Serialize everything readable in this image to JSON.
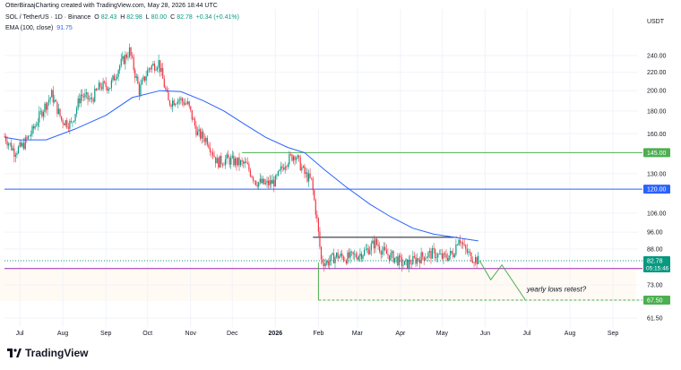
{
  "credit": "OtterBiraajCharting created with TradingView.com, May 28, 2026 18:44 UTC",
  "symbol": "SOL / TetherUS · 1D · Binance",
  "ohlc": {
    "O": "82.43",
    "H": "82.98",
    "L": "80.00",
    "C": "82.78",
    "change": "+0.34 (+0.41%)"
  },
  "ema": {
    "label": "EMA (100, close)",
    "value": "91.75"
  },
  "currency": "USDT",
  "logo_text": "TradingView",
  "colors": {
    "up": "#089981",
    "down": "#f23645",
    "ema": "#2962ff",
    "green_line": "#4caf50",
    "blue_line": "#2962ff",
    "purple_line": "#9c27b0",
    "black_line": "#131722"
  },
  "chart_data": {
    "type": "candlestick",
    "scale": "log",
    "y_ticks": [
      "240.00",
      "220.00",
      "200.00",
      "180.00",
      "160.00",
      "145.00",
      "130.00",
      "120.00",
      "106.00",
      "96.00",
      "88.00",
      "82.78",
      "73.00",
      "67.50",
      "61.50"
    ],
    "x_ticks": [
      "Jul",
      "Aug",
      "Sep",
      "Oct",
      "Nov",
      "Dec",
      "2026",
      "Feb",
      "Mar",
      "Apr",
      "May",
      "Jun",
      "Jul",
      "Aug",
      "Sep"
    ],
    "price_labels": [
      {
        "value": 145.0,
        "text": "145.00",
        "color": "#4caf50"
      },
      {
        "value": 120.0,
        "text": "120.00",
        "color": "#2962ff"
      },
      {
        "value": 82.78,
        "text": "82.78",
        "sub": "05:15:46",
        "color": "#089981"
      },
      {
        "value": 67.5,
        "text": "67.50",
        "color": "#4caf50"
      }
    ],
    "horizontal_lines": [
      {
        "value": 145.0,
        "color": "#4caf50",
        "from": "2025-12-08",
        "to": "end"
      },
      {
        "value": 120.0,
        "color": "#2962ff",
        "from": "start",
        "to": "end"
      },
      {
        "value": 93.5,
        "color": "#131722",
        "from": "2026-01-28",
        "to": "2026-05-12"
      },
      {
        "value": 79.5,
        "color": "#9c27b0",
        "from": "start",
        "to": "end"
      },
      {
        "value": 82.78,
        "color": "#089981",
        "dotted": true,
        "from": "start",
        "to": "end"
      },
      {
        "value": 67.5,
        "color": "#4caf50",
        "dashed": true,
        "from": "2026-02-01",
        "to": "end"
      }
    ],
    "projection": {
      "points": [
        [
          "2026-05-28",
          82.78
        ],
        [
          "2026-06-05",
          75.0
        ],
        [
          "2026-06-13",
          81.0
        ],
        [
          "2026-06-30",
          67.5
        ]
      ],
      "color": "#4caf50"
    },
    "annotation": {
      "text": "yearly lows retest?",
      "date": "2026-07-01",
      "value": 70.5
    },
    "ema_points": [
      [
        "2025-06-20",
        157
      ],
      [
        "2025-07-01",
        155
      ],
      [
        "2025-07-20",
        155
      ],
      [
        "2025-08-10",
        164
      ],
      [
        "2025-09-01",
        176
      ],
      [
        "2025-09-20",
        193
      ],
      [
        "2025-10-10",
        200
      ],
      [
        "2025-10-25",
        199
      ],
      [
        "2025-11-10",
        190
      ],
      [
        "2025-11-25",
        180
      ],
      [
        "2025-12-10",
        168
      ],
      [
        "2025-12-25",
        157
      ],
      [
        "2026-01-10",
        149
      ],
      [
        "2026-01-22",
        145
      ],
      [
        "2026-02-05",
        133
      ],
      [
        "2026-02-20",
        122
      ],
      [
        "2026-03-10",
        111
      ],
      [
        "2026-03-25",
        104
      ],
      [
        "2026-04-10",
        98
      ],
      [
        "2026-04-25",
        95
      ],
      [
        "2026-05-10",
        93.5
      ],
      [
        "2026-05-27",
        91.75
      ]
    ],
    "price_path": [
      [
        "2025-06-20",
        158
      ],
      [
        "2025-06-27",
        146
      ],
      [
        "2025-07-03",
        150
      ],
      [
        "2025-07-10",
        162
      ],
      [
        "2025-07-17",
        180
      ],
      [
        "2025-07-24",
        196
      ],
      [
        "2025-07-31",
        172
      ],
      [
        "2025-08-07",
        168
      ],
      [
        "2025-08-14",
        196
      ],
      [
        "2025-08-21",
        190
      ],
      [
        "2025-08-28",
        205
      ],
      [
        "2025-09-04",
        205
      ],
      [
        "2025-09-11",
        228
      ],
      [
        "2025-09-18",
        246
      ],
      [
        "2025-09-25",
        200
      ],
      [
        "2025-10-02",
        225
      ],
      [
        "2025-10-09",
        232
      ],
      [
        "2025-10-16",
        188
      ],
      [
        "2025-10-23",
        192
      ],
      [
        "2025-10-30",
        186
      ],
      [
        "2025-11-06",
        160
      ],
      [
        "2025-11-13",
        155
      ],
      [
        "2025-11-20",
        138
      ],
      [
        "2025-11-27",
        140
      ],
      [
        "2025-12-04",
        138
      ],
      [
        "2025-12-11",
        136
      ],
      [
        "2025-12-18",
        125
      ],
      [
        "2025-12-25",
        123
      ],
      [
        "2026-01-01",
        125
      ],
      [
        "2026-01-08",
        138
      ],
      [
        "2026-01-15",
        144
      ],
      [
        "2026-01-22",
        130
      ],
      [
        "2026-01-27",
        125
      ],
      [
        "2026-01-31",
        102
      ],
      [
        "2026-02-03",
        83
      ],
      [
        "2026-02-07",
        82
      ],
      [
        "2026-02-14",
        85
      ],
      [
        "2026-02-21",
        84
      ],
      [
        "2026-02-28",
        85
      ],
      [
        "2026-03-07",
        87
      ],
      [
        "2026-03-14",
        91
      ],
      [
        "2026-03-21",
        86
      ],
      [
        "2026-03-28",
        84
      ],
      [
        "2026-04-04",
        81
      ],
      [
        "2026-04-11",
        83
      ],
      [
        "2026-04-18",
        85
      ],
      [
        "2026-04-25",
        86
      ],
      [
        "2026-05-02",
        84
      ],
      [
        "2026-05-09",
        86
      ],
      [
        "2026-05-13",
        94
      ],
      [
        "2026-05-17",
        88
      ],
      [
        "2026-05-21",
        85
      ],
      [
        "2026-05-27",
        82.78
      ]
    ]
  }
}
